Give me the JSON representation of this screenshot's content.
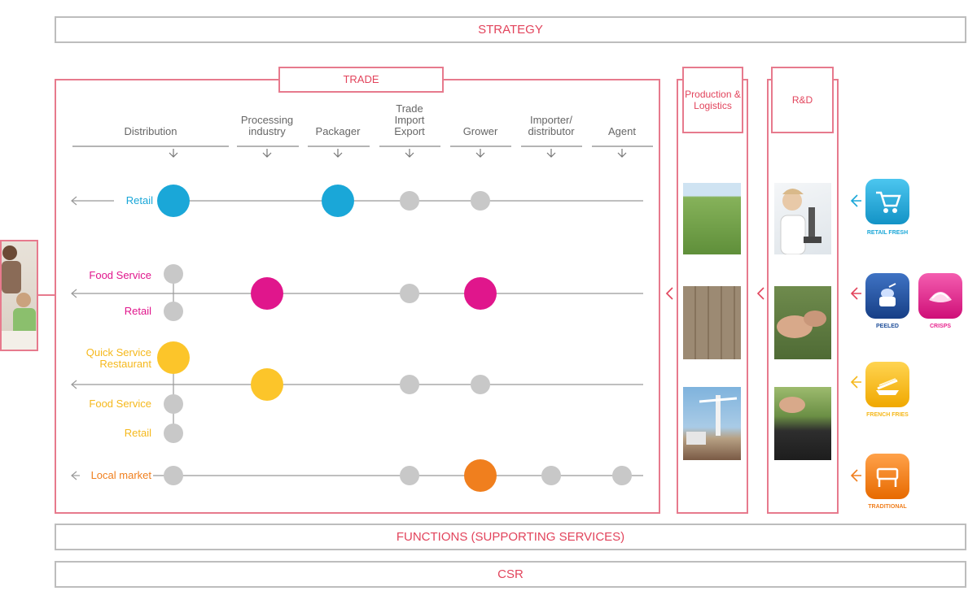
{
  "bars": {
    "strategy": "STRATEGY",
    "functions": "FUNCTIONS (SUPPORTING SERVICES)",
    "csr": "CSR"
  },
  "trade": {
    "title": "TRADE",
    "columns": [
      "Distribution",
      "Processing industry",
      "Packager",
      "Trade Import Export",
      "Grower",
      "Importer/ distributor",
      "Agent"
    ],
    "rows": {
      "retail": "Retail",
      "food_service_1": "Food Service",
      "retail_1": "Retail",
      "qsr": "Quick Service Restaurant",
      "food_service_2": "Food Service",
      "retail_2": "Retail",
      "local_market": "Local market"
    }
  },
  "production": {
    "title": "Production & Logistics"
  },
  "rnd": {
    "title": "R&D"
  },
  "products": [
    {
      "name": "RETAIL FRESH",
      "icon": "shopping-cart-icon",
      "color": "#1aa7d8"
    },
    {
      "name": "PEELED",
      "icon": "peeled-potato-icon",
      "color": "#1f4f9a"
    },
    {
      "name": "CRISPS",
      "icon": "crisps-icon",
      "color": "#e8258f"
    },
    {
      "name": "FRENCH FRIES",
      "icon": "fries-icon",
      "color": "#f5b81c"
    },
    {
      "name": "TRADITIONAL",
      "icon": "traditional-icon",
      "color": "#f07f1e"
    }
  ],
  "colors": {
    "accent": "#e2445c",
    "retail_blue": "#1aa7d8",
    "food_magenta": "#e0168c",
    "qsr_yellow": "#fcc52a",
    "local_orange": "#f07f1e",
    "node_grey": "#c8c8c8"
  }
}
